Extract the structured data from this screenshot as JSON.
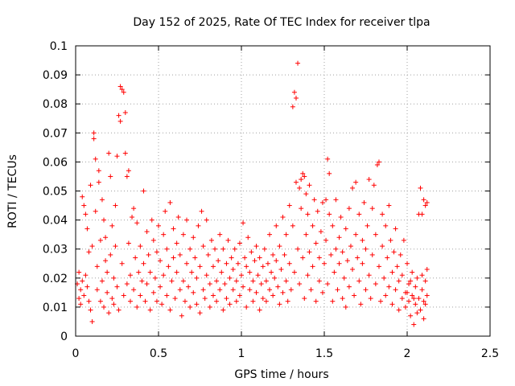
{
  "chart_data": {
    "type": "scatter",
    "title": "Day 152 of 2025, Rate Of TEC Index for receiver tlpa",
    "xlabel": "GPS time / hours",
    "ylabel": "ROTI / TECUs",
    "xlim": [
      0,
      2.5
    ],
    "ylim": [
      0,
      0.1
    ],
    "grid": true,
    "marker": "plus",
    "color": "#ff0000",
    "x_ticks": [
      {
        "value": 0,
        "label": "0"
      },
      {
        "value": 0.5,
        "label": "0.5"
      },
      {
        "value": 1,
        "label": "1"
      },
      {
        "value": 1.5,
        "label": "1.5"
      },
      {
        "value": 2,
        "label": "2"
      },
      {
        "value": 2.5,
        "label": "2.5"
      }
    ],
    "y_ticks": [
      {
        "value": 0,
        "label": "0"
      },
      {
        "value": 0.01,
        "label": "0.01"
      },
      {
        "value": 0.02,
        "label": "0.02"
      },
      {
        "value": 0.03,
        "label": "0.03"
      },
      {
        "value": 0.04,
        "label": "0.04"
      },
      {
        "value": 0.05,
        "label": "0.05"
      },
      {
        "value": 0.06,
        "label": "0.06"
      },
      {
        "value": 0.07,
        "label": "0.07"
      },
      {
        "value": 0.08,
        "label": "0.08"
      },
      {
        "value": 0.09,
        "label": "0.09"
      },
      {
        "value": 0.1,
        "label": "0.1"
      }
    ],
    "points": [
      [
        0.01,
        0.018
      ],
      [
        0.02,
        0.013
      ],
      [
        0.02,
        0.022
      ],
      [
        0.03,
        0.016
      ],
      [
        0.03,
        0.011
      ],
      [
        0.04,
        0.019
      ],
      [
        0.04,
        0.048
      ],
      [
        0.05,
        0.045
      ],
      [
        0.05,
        0.014
      ],
      [
        0.06,
        0.042
      ],
      [
        0.06,
        0.021
      ],
      [
        0.07,
        0.017
      ],
      [
        0.07,
        0.037
      ],
      [
        0.08,
        0.012
      ],
      [
        0.08,
        0.029
      ],
      [
        0.09,
        0.052
      ],
      [
        0.09,
        0.009
      ],
      [
        0.1,
        0.005
      ],
      [
        0.1,
        0.031
      ],
      [
        0.11,
        0.068
      ],
      [
        0.11,
        0.07
      ],
      [
        0.12,
        0.061
      ],
      [
        0.12,
        0.043
      ],
      [
        0.13,
        0.016
      ],
      [
        0.13,
        0.024
      ],
      [
        0.14,
        0.057
      ],
      [
        0.14,
        0.053
      ],
      [
        0.15,
        0.012
      ],
      [
        0.15,
        0.033
      ],
      [
        0.16,
        0.047
      ],
      [
        0.16,
        0.019
      ],
      [
        0.17,
        0.04
      ],
      [
        0.17,
        0.01
      ],
      [
        0.18,
        0.026
      ],
      [
        0.18,
        0.034
      ],
      [
        0.19,
        0.015
      ],
      [
        0.19,
        0.022
      ],
      [
        0.2,
        0.063
      ],
      [
        0.2,
        0.008
      ],
      [
        0.21,
        0.055
      ],
      [
        0.21,
        0.028
      ],
      [
        0.22,
        0.013
      ],
      [
        0.22,
        0.038
      ],
      [
        0.23,
        0.02
      ],
      [
        0.23,
        0.011
      ],
      [
        0.24,
        0.031
      ],
      [
        0.24,
        0.045
      ],
      [
        0.25,
        0.062
      ],
      [
        0.25,
        0.017
      ],
      [
        0.26,
        0.076
      ],
      [
        0.26,
        0.009
      ],
      [
        0.27,
        0.074
      ],
      [
        0.27,
        0.086
      ],
      [
        0.28,
        0.085
      ],
      [
        0.28,
        0.025
      ],
      [
        0.29,
        0.084
      ],
      [
        0.29,
        0.014
      ],
      [
        0.3,
        0.077
      ],
      [
        0.3,
        0.063
      ],
      [
        0.31,
        0.018
      ],
      [
        0.31,
        0.055
      ],
      [
        0.32,
        0.057
      ],
      [
        0.32,
        0.032
      ],
      [
        0.33,
        0.012
      ],
      [
        0.33,
        0.021
      ],
      [
        0.34,
        0.041
      ],
      [
        0.35,
        0.044
      ],
      [
        0.35,
        0.016
      ],
      [
        0.36,
        0.027
      ],
      [
        0.37,
        0.01
      ],
      [
        0.37,
        0.039
      ],
      [
        0.38,
        0.022
      ],
      [
        0.39,
        0.014
      ],
      [
        0.39,
        0.031
      ],
      [
        0.4,
        0.019
      ],
      [
        0.41,
        0.05
      ],
      [
        0.41,
        0.025
      ],
      [
        0.42,
        0.012
      ],
      [
        0.43,
        0.036
      ],
      [
        0.43,
        0.018
      ],
      [
        0.44,
        0.028
      ],
      [
        0.45,
        0.009
      ],
      [
        0.45,
        0.022
      ],
      [
        0.46,
        0.04
      ],
      [
        0.47,
        0.015
      ],
      [
        0.47,
        0.033
      ],
      [
        0.48,
        0.02
      ],
      [
        0.49,
        0.012
      ],
      [
        0.49,
        0.029
      ],
      [
        0.5,
        0.038
      ],
      [
        0.51,
        0.017
      ],
      [
        0.51,
        0.026
      ],
      [
        0.52,
        0.011
      ],
      [
        0.53,
        0.035
      ],
      [
        0.53,
        0.021
      ],
      [
        0.54,
        0.043
      ],
      [
        0.55,
        0.014
      ],
      [
        0.55,
        0.03
      ],
      [
        0.56,
        0.024
      ],
      [
        0.57,
        0.046
      ],
      [
        0.57,
        0.009
      ],
      [
        0.58,
        0.019
      ],
      [
        0.59,
        0.037
      ],
      [
        0.59,
        0.027
      ],
      [
        0.6,
        0.013
      ],
      [
        0.61,
        0.032
      ],
      [
        0.61,
        0.022
      ],
      [
        0.62,
        0.041
      ],
      [
        0.63,
        0.016
      ],
      [
        0.63,
        0.028
      ],
      [
        0.64,
        0.007
      ],
      [
        0.65,
        0.019
      ],
      [
        0.65,
        0.035
      ],
      [
        0.66,
        0.012
      ],
      [
        0.67,
        0.025
      ],
      [
        0.67,
        0.04
      ],
      [
        0.68,
        0.017
      ],
      [
        0.69,
        0.03
      ],
      [
        0.69,
        0.01
      ],
      [
        0.7,
        0.022
      ],
      [
        0.71,
        0.034
      ],
      [
        0.71,
        0.015
      ],
      [
        0.72,
        0.027
      ],
      [
        0.73,
        0.011
      ],
      [
        0.73,
        0.02
      ],
      [
        0.74,
        0.038
      ],
      [
        0.75,
        0.008
      ],
      [
        0.75,
        0.024
      ],
      [
        0.76,
        0.043
      ],
      [
        0.77,
        0.016
      ],
      [
        0.77,
        0.031
      ],
      [
        0.78,
        0.013
      ],
      [
        0.79,
        0.04
      ],
      [
        0.79,
        0.021
      ],
      [
        0.8,
        0.028
      ],
      [
        0.81,
        0.01
      ],
      [
        0.81,
        0.018
      ],
      [
        0.82,
        0.033
      ],
      [
        0.83,
        0.024
      ],
      [
        0.83,
        0.014
      ],
      [
        0.84,
        0.03
      ],
      [
        0.85,
        0.019
      ],
      [
        0.85,
        0.012
      ],
      [
        0.86,
        0.026
      ],
      [
        0.87,
        0.035
      ],
      [
        0.87,
        0.016
      ],
      [
        0.88,
        0.022
      ],
      [
        0.89,
        0.009
      ],
      [
        0.89,
        0.03
      ],
      [
        0.9,
        0.018
      ],
      [
        0.91,
        0.025
      ],
      [
        0.91,
        0.013
      ],
      [
        0.92,
        0.033
      ],
      [
        0.93,
        0.02
      ],
      [
        0.93,
        0.011
      ],
      [
        0.94,
        0.027
      ],
      [
        0.95,
        0.016
      ],
      [
        0.95,
        0.023
      ],
      [
        0.96,
        0.03
      ],
      [
        0.97,
        0.012
      ],
      [
        0.97,
        0.019
      ],
      [
        0.98,
        0.025
      ],
      [
        0.99,
        0.014
      ],
      [
        0.99,
        0.032
      ],
      [
        1.0,
        0.021
      ],
      [
        1.01,
        0.039
      ],
      [
        1.01,
        0.017
      ],
      [
        1.02,
        0.027
      ],
      [
        1.03,
        0.01
      ],
      [
        1.03,
        0.024
      ],
      [
        1.04,
        0.034
      ],
      [
        1.05,
        0.016
      ],
      [
        1.05,
        0.022
      ],
      [
        1.06,
        0.029
      ],
      [
        1.07,
        0.012
      ],
      [
        1.07,
        0.019
      ],
      [
        1.08,
        0.026
      ],
      [
        1.09,
        0.015
      ],
      [
        1.09,
        0.031
      ],
      [
        1.1,
        0.021
      ],
      [
        1.11,
        0.009
      ],
      [
        1.11,
        0.027
      ],
      [
        1.12,
        0.018
      ],
      [
        1.13,
        0.024
      ],
      [
        1.13,
        0.013
      ],
      [
        1.14,
        0.03
      ],
      [
        1.15,
        0.019
      ],
      [
        1.15,
        0.012
      ],
      [
        1.16,
        0.025
      ],
      [
        1.17,
        0.035
      ],
      [
        1.17,
        0.016
      ],
      [
        1.18,
        0.022
      ],
      [
        1.19,
        0.028
      ],
      [
        1.19,
        0.014
      ],
      [
        1.2,
        0.02
      ],
      [
        1.21,
        0.038
      ],
      [
        1.21,
        0.026
      ],
      [
        1.22,
        0.017
      ],
      [
        1.23,
        0.011
      ],
      [
        1.23,
        0.031
      ],
      [
        1.24,
        0.023
      ],
      [
        1.25,
        0.041
      ],
      [
        1.25,
        0.015
      ],
      [
        1.26,
        0.028
      ],
      [
        1.27,
        0.035
      ],
      [
        1.27,
        0.019
      ],
      [
        1.28,
        0.012
      ],
      [
        1.29,
        0.045
      ],
      [
        1.29,
        0.025
      ],
      [
        1.3,
        0.016
      ],
      [
        1.31,
        0.079
      ],
      [
        1.31,
        0.038
      ],
      [
        1.32,
        0.084
      ],
      [
        1.32,
        0.022
      ],
      [
        1.33,
        0.082
      ],
      [
        1.33,
        0.053
      ],
      [
        1.34,
        0.094
      ],
      [
        1.34,
        0.03
      ],
      [
        1.35,
        0.051
      ],
      [
        1.35,
        0.018
      ],
      [
        1.36,
        0.054
      ],
      [
        1.36,
        0.044
      ],
      [
        1.37,
        0.056
      ],
      [
        1.37,
        0.027
      ],
      [
        1.38,
        0.055
      ],
      [
        1.38,
        0.013
      ],
      [
        1.39,
        0.049
      ],
      [
        1.39,
        0.035
      ],
      [
        1.4,
        0.042
      ],
      [
        1.4,
        0.021
      ],
      [
        1.41,
        0.052
      ],
      [
        1.41,
        0.029
      ],
      [
        1.42,
        0.016
      ],
      [
        1.43,
        0.038
      ],
      [
        1.43,
        0.024
      ],
      [
        1.44,
        0.047
      ],
      [
        1.45,
        0.012
      ],
      [
        1.45,
        0.032
      ],
      [
        1.46,
        0.043
      ],
      [
        1.47,
        0.019
      ],
      [
        1.47,
        0.027
      ],
      [
        1.48,
        0.036
      ],
      [
        1.49,
        0.015
      ],
      [
        1.49,
        0.046
      ],
      [
        1.5,
        0.025
      ],
      [
        1.51,
        0.047
      ],
      [
        1.51,
        0.033
      ],
      [
        1.52,
        0.061
      ],
      [
        1.52,
        0.018
      ],
      [
        1.53,
        0.056
      ],
      [
        1.53,
        0.042
      ],
      [
        1.54,
        0.028
      ],
      [
        1.55,
        0.012
      ],
      [
        1.55,
        0.038
      ],
      [
        1.56,
        0.022
      ],
      [
        1.57,
        0.03
      ],
      [
        1.57,
        0.047
      ],
      [
        1.58,
        0.016
      ],
      [
        1.59,
        0.034
      ],
      [
        1.59,
        0.025
      ],
      [
        1.6,
        0.041
      ],
      [
        1.61,
        0.013
      ],
      [
        1.61,
        0.029
      ],
      [
        1.62,
        0.02
      ],
      [
        1.63,
        0.037
      ],
      [
        1.63,
        0.01
      ],
      [
        1.64,
        0.026
      ],
      [
        1.65,
        0.044
      ],
      [
        1.65,
        0.017
      ],
      [
        1.66,
        0.031
      ],
      [
        1.67,
        0.023
      ],
      [
        1.67,
        0.051
      ],
      [
        1.68,
        0.014
      ],
      [
        1.69,
        0.035
      ],
      [
        1.69,
        0.053
      ],
      [
        1.7,
        0.027
      ],
      [
        1.71,
        0.019
      ],
      [
        1.71,
        0.042
      ],
      [
        1.72,
        0.011
      ],
      [
        1.73,
        0.033
      ],
      [
        1.73,
        0.025
      ],
      [
        1.74,
        0.046
      ],
      [
        1.75,
        0.016
      ],
      [
        1.75,
        0.03
      ],
      [
        1.76,
        0.038
      ],
      [
        1.77,
        0.021
      ],
      [
        1.77,
        0.054
      ],
      [
        1.78,
        0.013
      ],
      [
        1.79,
        0.044
      ],
      [
        1.79,
        0.028
      ],
      [
        1.8,
        0.052
      ],
      [
        1.81,
        0.018
      ],
      [
        1.81,
        0.035
      ],
      [
        1.82,
        0.059
      ],
      [
        1.83,
        0.024
      ],
      [
        1.83,
        0.06
      ],
      [
        1.84,
        0.012
      ],
      [
        1.85,
        0.042
      ],
      [
        1.85,
        0.031
      ],
      [
        1.86,
        0.02
      ],
      [
        1.87,
        0.038
      ],
      [
        1.87,
        0.014
      ],
      [
        1.88,
        0.027
      ],
      [
        1.89,
        0.045
      ],
      [
        1.89,
        0.017
      ],
      [
        1.9,
        0.033
      ],
      [
        1.91,
        0.022
      ],
      [
        1.91,
        0.011
      ],
      [
        1.92,
        0.029
      ],
      [
        1.93,
        0.016
      ],
      [
        1.93,
        0.037
      ],
      [
        1.94,
        0.024
      ],
      [
        1.95,
        0.009
      ],
      [
        1.95,
        0.019
      ],
      [
        1.96,
        0.028
      ],
      [
        1.97,
        0.013
      ],
      [
        1.97,
        0.021
      ],
      [
        1.98,
        0.033
      ],
      [
        1.99,
        0.015
      ],
      [
        1.99,
        0.01
      ],
      [
        2.0,
        0.025
      ],
      [
        2.01,
        0.018
      ],
      [
        2.01,
        0.012
      ],
      [
        2.02,
        0.007
      ],
      [
        2.03,
        0.022
      ],
      [
        2.03,
        0.014
      ],
      [
        2.04,
        0.004
      ],
      [
        2.05,
        0.017
      ],
      [
        2.05,
        0.011
      ],
      [
        2.06,
        0.02
      ],
      [
        2.07,
        0.042
      ],
      [
        2.07,
        0.013
      ],
      [
        2.08,
        0.051
      ],
      [
        2.08,
        0.009
      ],
      [
        2.09,
        0.016
      ],
      [
        2.09,
        0.042
      ],
      [
        2.1,
        0.012
      ],
      [
        2.1,
        0.047
      ],
      [
        2.11,
        0.019
      ],
      [
        2.11,
        0.045
      ],
      [
        2.12,
        0.014
      ],
      [
        2.12,
        0.046
      ],
      [
        2.12,
        0.023
      ],
      [
        2.11,
        0.011
      ],
      [
        2.1,
        0.006
      ],
      [
        2.09,
        0.021
      ],
      [
        2.06,
        0.008
      ],
      [
        2.04,
        0.013
      ],
      [
        2.02,
        0.019
      ],
      [
        2.0,
        0.015
      ]
    ]
  }
}
